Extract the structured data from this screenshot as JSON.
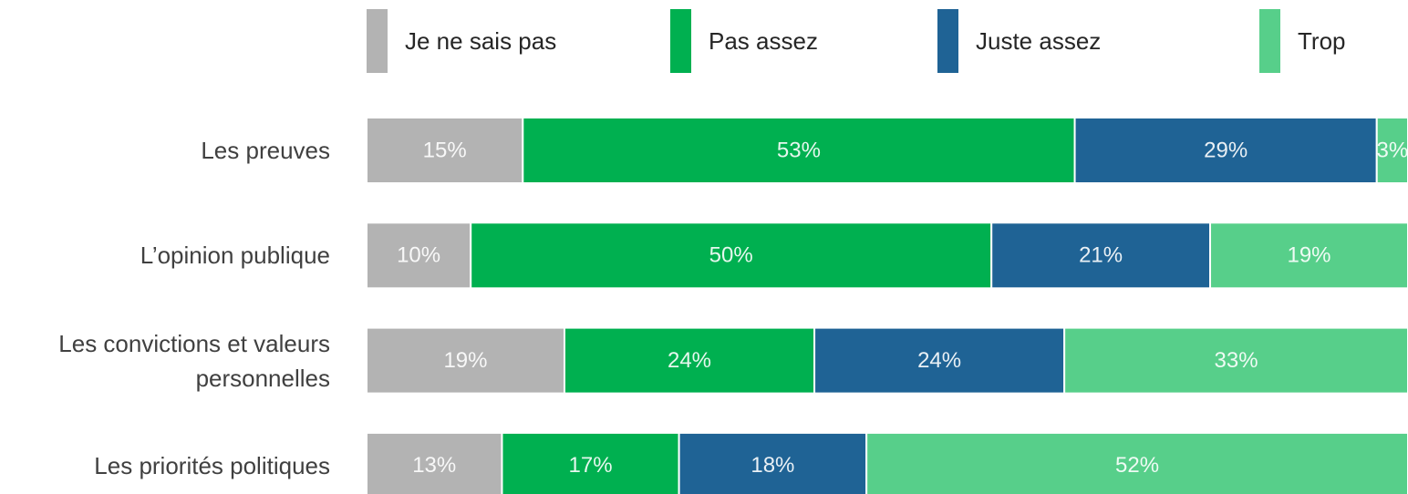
{
  "chart_data": {
    "type": "stacked-bar-horizontal",
    "categories": [
      "Les preuves",
      "L’opinion publique",
      "Les convictions et valeurs personnelles",
      "Les priorités politiques"
    ],
    "series": [
      {
        "name": "Je ne sais pas",
        "color": "#b3b3b3",
        "values": [
          15,
          10,
          19,
          13
        ],
        "value_labels": [
          "15%",
          "10%",
          "19%",
          "13%"
        ]
      },
      {
        "name": "Pas assez",
        "color": "#00b050",
        "values": [
          53,
          50,
          24,
          17
        ],
        "value_labels": [
          "53%",
          "50%",
          "24%",
          "17%"
        ]
      },
      {
        "name": "Juste assez",
        "color": "#1f6395",
        "values": [
          29,
          21,
          24,
          18
        ],
        "value_labels": [
          "29%",
          "21%",
          "24%",
          "18%"
        ]
      },
      {
        "name": "Trop",
        "color": "#57cf8a",
        "values": [
          3,
          19,
          33,
          52
        ],
        "value_labels": [
          "3%",
          "19%",
          "33%",
          "52%"
        ]
      }
    ],
    "xlim": [
      0,
      100
    ]
  }
}
